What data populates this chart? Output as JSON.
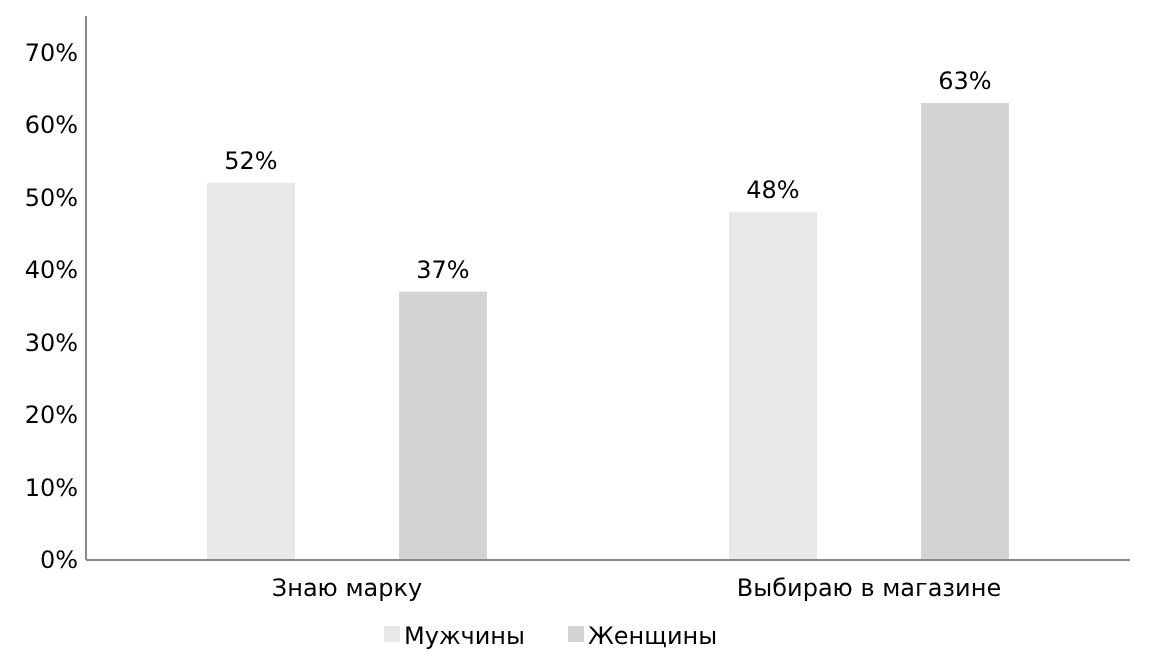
{
  "chart_data": {
    "type": "bar",
    "categories": [
      "Знаю марку",
      "Выбираю в магазине"
    ],
    "series": [
      {
        "name": "Мужчины",
        "color": "#e8e8e8",
        "values": [
          52,
          48
        ],
        "value_labels": [
          "52%",
          "48%"
        ]
      },
      {
        "name": "Женщины",
        "color": "#d4d4d4",
        "values": [
          37,
          63
        ],
        "value_labels": [
          "37%",
          "63%"
        ]
      }
    ],
    "ylim": [
      0,
      75
    ],
    "yticks": [
      {
        "value": 0,
        "label": "0%"
      },
      {
        "value": 10,
        "label": "10%"
      },
      {
        "value": 20,
        "label": "20%"
      },
      {
        "value": 30,
        "label": "30%"
      },
      {
        "value": 40,
        "label": "40%"
      },
      {
        "value": 50,
        "label": "50%"
      },
      {
        "value": 60,
        "label": "60%"
      },
      {
        "value": 70,
        "label": "70%"
      }
    ],
    "grid": false,
    "legend": "bottom"
  }
}
